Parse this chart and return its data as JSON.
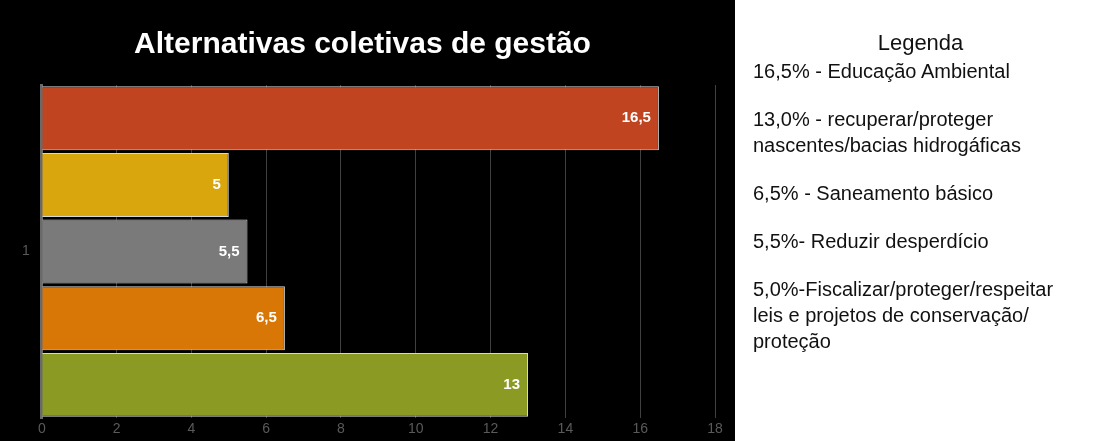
{
  "chart_data": {
    "type": "bar",
    "orientation": "horizontal",
    "title": "Alternativas coletivas de gestão",
    "categories": [
      null,
      null,
      "1",
      null,
      null
    ],
    "series": [
      {
        "colors": [
          "#c0441f",
          "#d9a60e",
          "#7a7a7a",
          "#d97706",
          "#8a9a22"
        ],
        "values": [
          16.5,
          5,
          5.5,
          6.5,
          13
        ],
        "value_labels": [
          "16,5",
          "5",
          "5,5",
          "6,5",
          "13"
        ]
      }
    ],
    "xlim": [
      0,
      18
    ],
    "xticks": [
      0,
      2,
      4,
      6,
      8,
      10,
      12,
      14,
      16,
      18
    ],
    "grid": "x",
    "annotations": [
      "Legenda",
      "16,5% - Educação Ambiental",
      "13,0% - recuperar/proteger nascentes/bacias hidrogáficas",
      "6,5% - Saneamento básico",
      "5,5%- Reduzir desperdício",
      "5,0%-Fiscalizar/proteger/respeitar leis e projetos de conservação/ proteção"
    ]
  }
}
